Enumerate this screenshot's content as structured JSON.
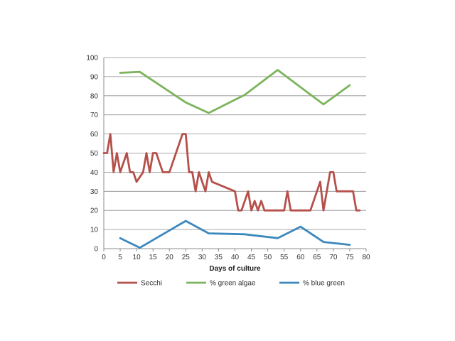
{
  "chart_data": {
    "type": "line",
    "title": "",
    "xlabel": "Days of culture",
    "ylabel": "",
    "xlim": [
      0,
      80
    ],
    "ylim": [
      0,
      100
    ],
    "x_ticks": [
      0,
      5,
      10,
      15,
      20,
      25,
      30,
      35,
      40,
      45,
      50,
      55,
      60,
      65,
      70,
      75,
      80
    ],
    "y_ticks": [
      0,
      10,
      20,
      30,
      40,
      50,
      60,
      70,
      80,
      90,
      100
    ],
    "grid": "horizontal",
    "legend_position": "bottom",
    "series": [
      {
        "name": "Secchi",
        "color": "#b5504a",
        "points": [
          [
            0,
            50
          ],
          [
            1,
            50
          ],
          [
            2,
            60
          ],
          [
            3,
            40
          ],
          [
            4,
            50
          ],
          [
            5,
            40
          ],
          [
            7,
            50
          ],
          [
            8,
            40
          ],
          [
            9,
            40
          ],
          [
            10,
            35
          ],
          [
            12,
            40
          ],
          [
            13,
            50
          ],
          [
            14,
            40
          ],
          [
            15,
            50
          ],
          [
            16,
            50
          ],
          [
            18,
            40
          ],
          [
            20,
            40
          ],
          [
            24,
            60
          ],
          [
            25,
            60
          ],
          [
            26,
            40
          ],
          [
            27,
            40
          ],
          [
            28,
            30
          ],
          [
            29,
            40
          ],
          [
            31,
            30
          ],
          [
            32,
            40
          ],
          [
            33,
            35
          ],
          [
            40,
            30
          ],
          [
            41,
            20
          ],
          [
            42,
            20
          ],
          [
            44,
            30
          ],
          [
            45,
            20
          ],
          [
            46,
            25
          ],
          [
            47,
            20
          ],
          [
            48,
            25
          ],
          [
            49,
            20
          ],
          [
            55,
            20
          ],
          [
            56,
            30
          ],
          [
            57,
            20
          ],
          [
            63,
            20
          ],
          [
            66,
            35
          ],
          [
            67,
            20
          ],
          [
            69,
            40
          ],
          [
            70,
            40
          ],
          [
            71,
            30
          ],
          [
            76,
            30
          ],
          [
            77,
            20
          ],
          [
            78,
            20
          ]
        ]
      },
      {
        "name": "% green algae",
        "color": "#7cb45c",
        "points": [
          [
            5,
            92
          ],
          [
            11,
            92.5
          ],
          [
            25,
            76.5
          ],
          [
            32,
            71
          ],
          [
            43,
            80.5
          ],
          [
            53,
            93.5
          ],
          [
            67,
            75.5
          ],
          [
            75,
            85.5
          ]
        ]
      },
      {
        "name": "% blue green",
        "color": "#3d88bd",
        "points": [
          [
            5,
            5.5
          ],
          [
            11,
            0.5
          ],
          [
            25,
            14.5
          ],
          [
            32,
            8
          ],
          [
            43,
            7.5
          ],
          [
            53,
            5.5
          ],
          [
            60,
            11.5
          ],
          [
            67,
            3.5
          ],
          [
            75,
            2
          ]
        ]
      }
    ]
  }
}
